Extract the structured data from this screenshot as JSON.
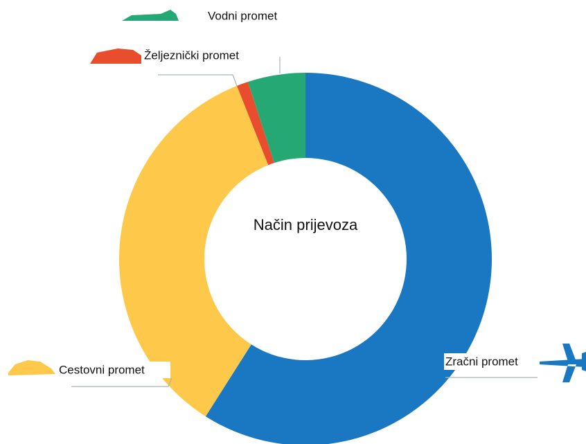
{
  "chart_data": {
    "type": "donut",
    "title": "Način prijevoza",
    "categories": [
      "Zračni promet",
      "Cestovni promet",
      "Željeznički promet",
      "Vodni promet"
    ],
    "values": [
      59,
      35,
      1,
      5
    ],
    "colors": [
      "#1a78c2",
      "#fec84a",
      "#e84e2d",
      "#25a874"
    ]
  }
}
